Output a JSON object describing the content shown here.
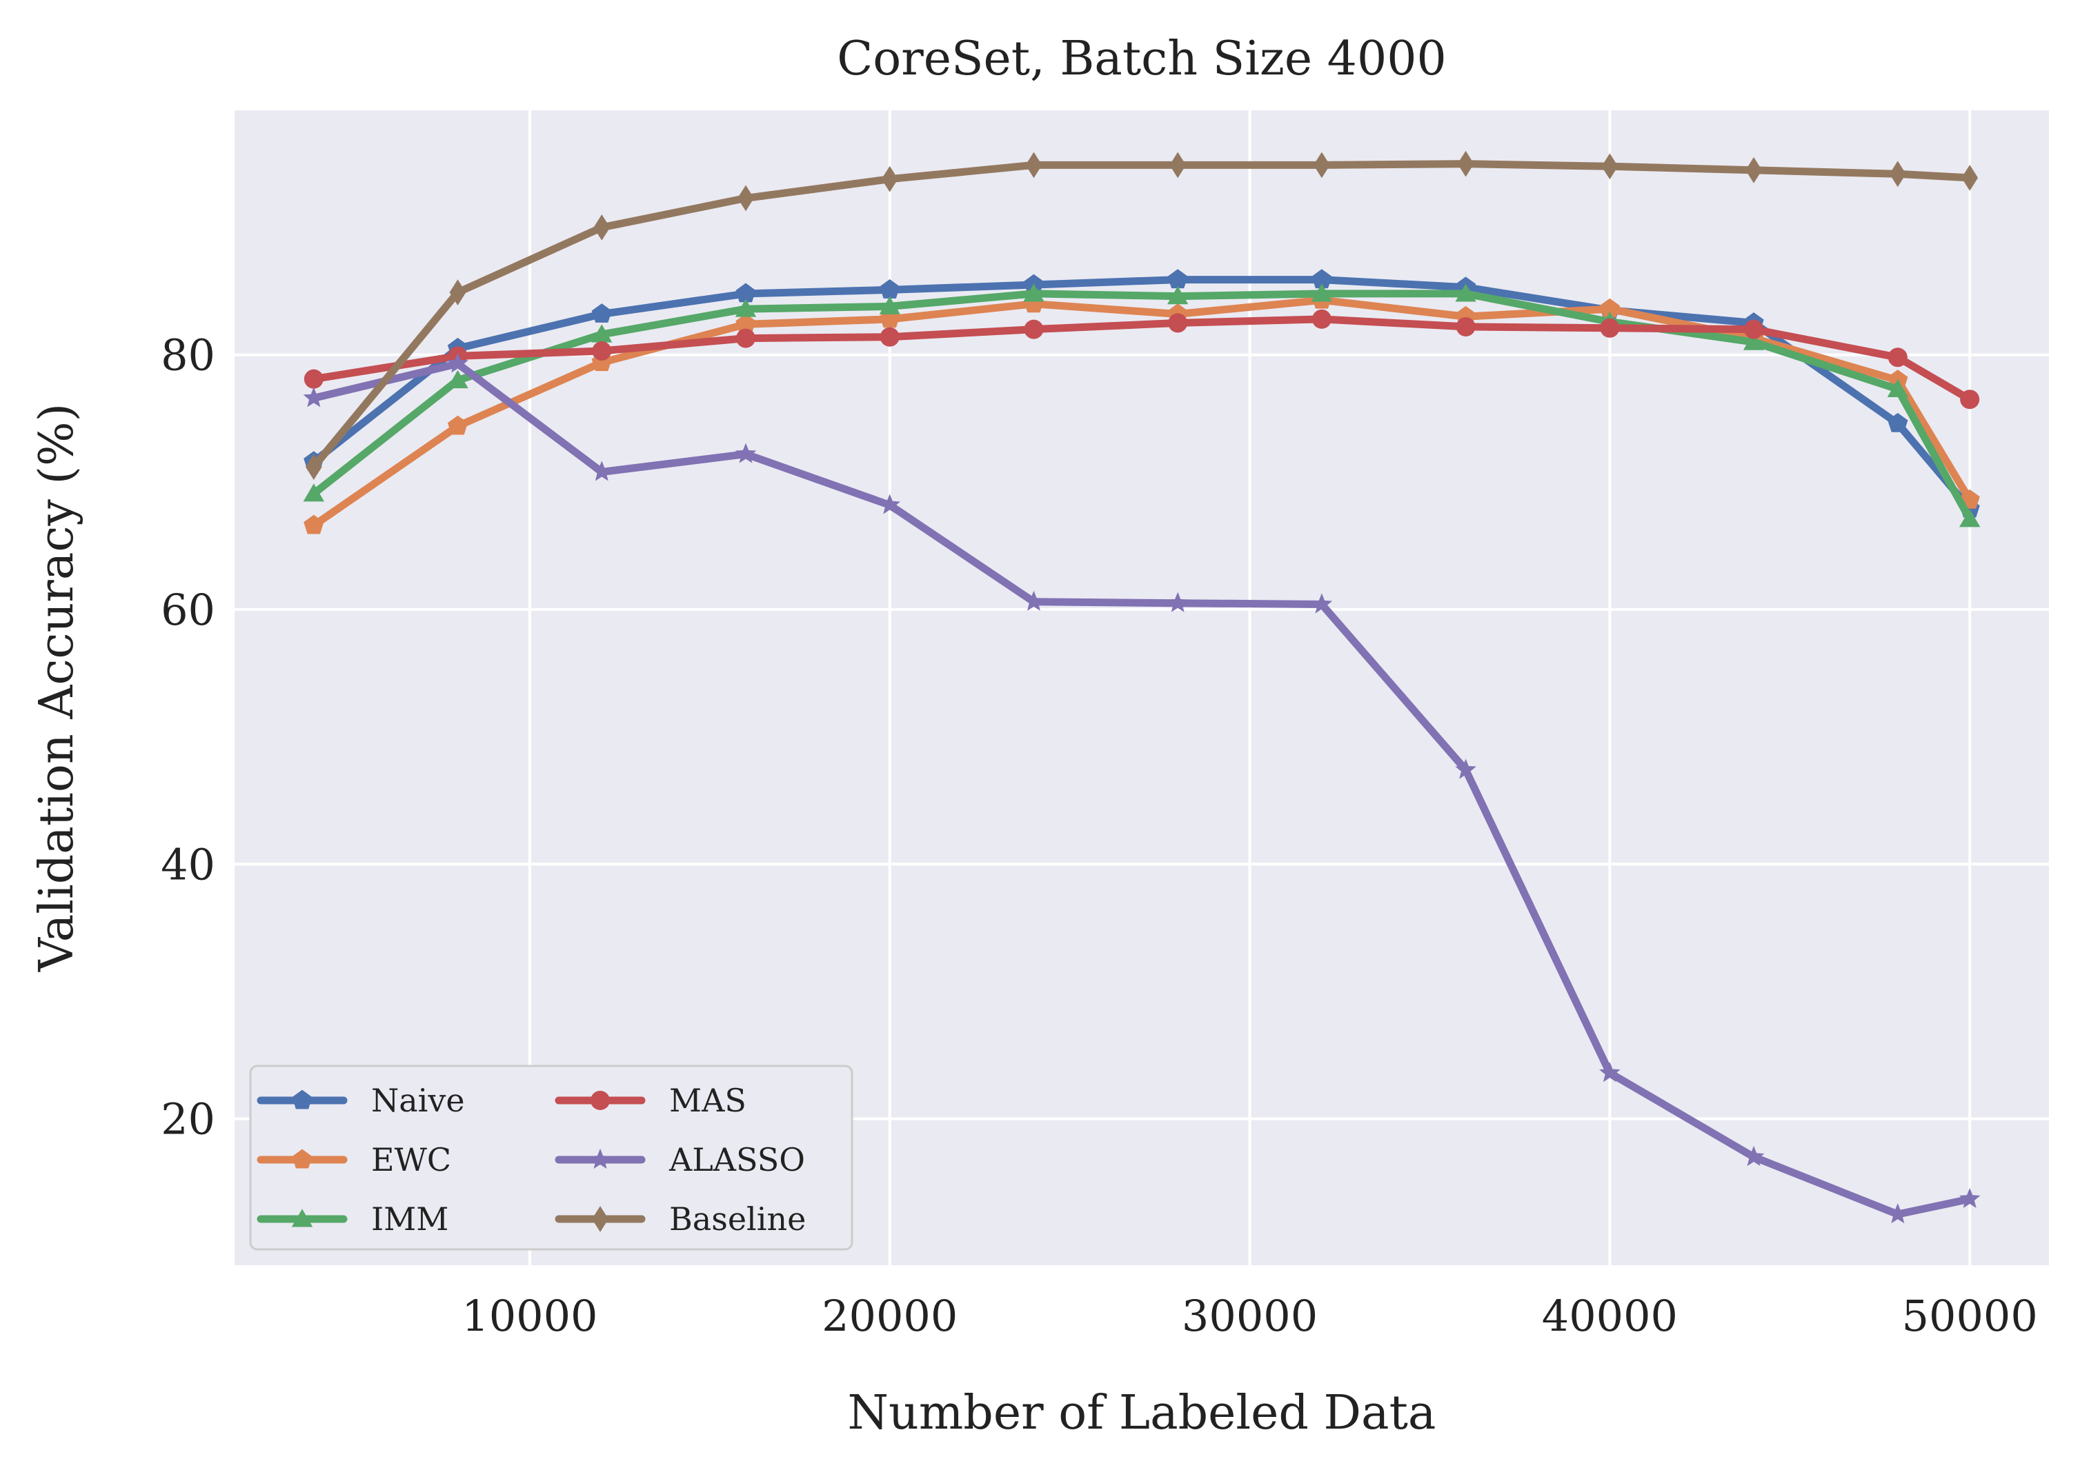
{
  "chart_data": {
    "type": "line",
    "title": "CoreSet, Batch Size 4000",
    "xlabel": "Number of Labeled Data",
    "ylabel": "Validation Accuracy (%)",
    "xlim": [
      1800,
      52200
    ],
    "ylim": [
      8.5,
      99.2
    ],
    "x_ticks": [
      10000,
      20000,
      30000,
      40000,
      50000
    ],
    "y_ticks": [
      20,
      40,
      60,
      80
    ],
    "x_tick_labels": [
      "10000",
      "20000",
      "30000",
      "40000",
      "50000"
    ],
    "y_tick_labels": [
      "20",
      "40",
      "60",
      "80"
    ],
    "grid": true,
    "legend_position": "lower-left",
    "legend_columns": 2,
    "background": "#eaeaf2",
    "x": [
      4000,
      8000,
      12000,
      16000,
      20000,
      24000,
      28000,
      32000,
      36000,
      40000,
      44000,
      48000,
      50000
    ],
    "series": [
      {
        "name": "Naive",
        "color": "#4c72b0",
        "marker": "pentagon",
        "values": [
          71.6,
          80.5,
          83.2,
          84.8,
          85.1,
          85.5,
          85.9,
          85.9,
          85.3,
          83.5,
          82.5,
          74.6,
          67.9
        ]
      },
      {
        "name": "EWC",
        "color": "#dd8452",
        "marker": "pentagon",
        "values": [
          66.6,
          74.4,
          79.4,
          82.4,
          82.8,
          84.0,
          83.2,
          84.3,
          83.0,
          83.6,
          81.3,
          78.0,
          68.6
        ]
      },
      {
        "name": "IMM",
        "color": "#55a868",
        "marker": "triangle",
        "values": [
          69.1,
          78.0,
          81.6,
          83.6,
          83.8,
          84.8,
          84.6,
          84.8,
          84.8,
          82.6,
          81.0,
          77.3,
          67.1
        ]
      },
      {
        "name": "MAS",
        "color": "#c44e52",
        "marker": "circle",
        "values": [
          78.1,
          79.9,
          80.3,
          81.3,
          81.4,
          82.0,
          82.5,
          82.8,
          82.2,
          82.1,
          82.0,
          79.8,
          76.5
        ]
      },
      {
        "name": "ALASSO",
        "color": "#8172b3",
        "marker": "star",
        "values": [
          76.6,
          79.3,
          70.8,
          72.2,
          68.2,
          60.6,
          60.5,
          60.4,
          47.4,
          23.6,
          17.0,
          12.5,
          13.7
        ]
      },
      {
        "name": "Baseline",
        "color": "#937860",
        "marker": "diamond",
        "values": [
          71.2,
          84.9,
          90.0,
          92.3,
          93.8,
          94.9,
          94.9,
          94.9,
          95.0,
          94.8,
          94.5,
          94.2,
          93.9
        ]
      }
    ]
  }
}
